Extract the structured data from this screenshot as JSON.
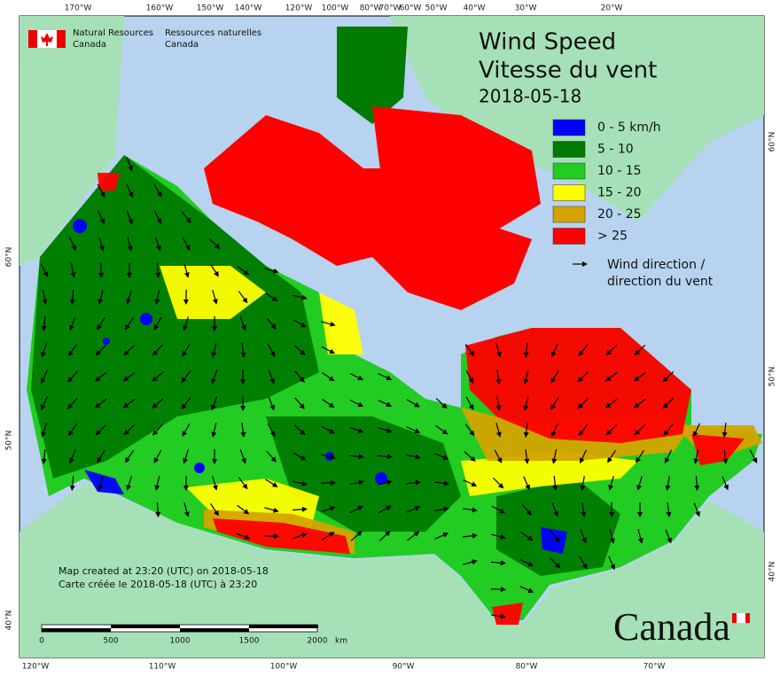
{
  "agency": {
    "en": [
      "Natural Resources",
      "Canada"
    ],
    "fr": [
      "Ressources naturelles",
      "Canada"
    ]
  },
  "title": {
    "line1": "Wind Speed",
    "line2": "Vitesse du vent",
    "date": "2018-05-18"
  },
  "legend": {
    "items": [
      {
        "label": "0 - 5 km/h",
        "color": "#0000ff"
      },
      {
        "label": "5 - 10",
        "color": "#007a00"
      },
      {
        "label": "10 - 15",
        "color": "#22cc22"
      },
      {
        "label": "15 - 20",
        "color": "#ffff00"
      },
      {
        "label": "20 - 25",
        "color": "#d4a300"
      },
      {
        "label": "> 25",
        "color": "#ff0000"
      }
    ],
    "arrow_label": [
      "Wind direction /",
      "direction du vent"
    ]
  },
  "credits": [
    "Map created at 23:20 (UTC) on 2018-05-18",
    "Carte créée le 2018-05-18 (UTC) à 23:20"
  ],
  "scale_bar": {
    "labels": [
      "0",
      "500",
      "1000",
      "1500",
      "2000"
    ],
    "unit": "km"
  },
  "graticule": {
    "top": [
      "170°W",
      "160°W",
      "150°W",
      "140°W",
      "120°W",
      "100°W",
      "80°W",
      "70°W",
      "60°W",
      "50°W",
      "40°W",
      "30°W",
      "20°W"
    ],
    "bottom": [
      "120°W",
      "110°W",
      "100°W",
      "90°W",
      "80°W",
      "70°W"
    ],
    "left": [
      "60°N",
      "50°N",
      "40°N"
    ],
    "right": [
      "60°N",
      "50°N",
      "40°N"
    ]
  },
  "wordmark": "Canada"
}
